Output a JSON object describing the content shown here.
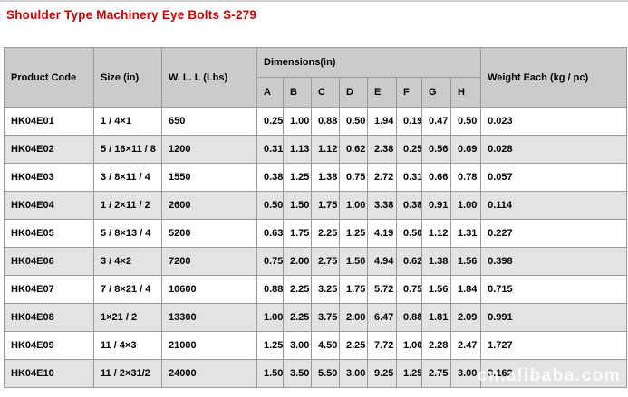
{
  "page_title": "Shoulder Type Machinery Eye Bolts S-279",
  "colors": {
    "title_red": "#cc0000",
    "header_bg": "#cbcbcb",
    "alt_row_bg": "#e3e3e3",
    "border": "#999999"
  },
  "table": {
    "headers": {
      "product_code": "Product Code",
      "size": "Size (in)",
      "wll": "W. L. L (Lbs)",
      "dimensions": "Dimensions(in)",
      "dim_letters": [
        "A",
        "B",
        "C",
        "D",
        "E",
        "F",
        "G",
        "H"
      ],
      "weight": "Weight Each (kg / pc)"
    },
    "rows": [
      {
        "code": "HK04E01",
        "size": "1 / 4×1",
        "wll": "650",
        "dims": [
          "0.25",
          "1.00",
          "0.88",
          "0.50",
          "1.94",
          "0.19",
          "0.47",
          "0.50"
        ],
        "weight": "0.023"
      },
      {
        "code": "HK04E02",
        "size": "5 / 16×11 / 8",
        "wll": "1200",
        "dims": [
          "0.31",
          "1.13",
          "1.12",
          "0.62",
          "2.38",
          "0.25",
          "0.56",
          "0.69"
        ],
        "weight": "0.028"
      },
      {
        "code": "HK04E03",
        "size": "3 / 8×11 / 4",
        "wll": "1550",
        "dims": [
          "0.38",
          "1.25",
          "1.38",
          "0.75",
          "2.72",
          "0.31",
          "0.66",
          "0.78"
        ],
        "weight": "0.057"
      },
      {
        "code": "HK04E04",
        "size": "1 / 2×11 / 2",
        "wll": "2600",
        "dims": [
          "0.50",
          "1.50",
          "1.75",
          "1.00",
          "3.38",
          "0.38",
          "0.91",
          "1.00"
        ],
        "weight": "0.114"
      },
      {
        "code": "HK04E05",
        "size": "5 / 8×13 / 4",
        "wll": "5200",
        "dims": [
          "0.63",
          "1.75",
          "2.25",
          "1.25",
          "4.19",
          "0.50",
          "1.12",
          "1.31"
        ],
        "weight": "0.227"
      },
      {
        "code": "HK04E06",
        "size": "3 / 4×2",
        "wll": "7200",
        "dims": [
          "0.75",
          "2.00",
          "2.75",
          "1.50",
          "4.94",
          "0.62",
          "1.38",
          "1.56"
        ],
        "weight": "0.398"
      },
      {
        "code": "HK04E07",
        "size": "7 / 8×21 / 4",
        "wll": "10600",
        "dims": [
          "0.88",
          "2.25",
          "3.25",
          "1.75",
          "5.72",
          "0.75",
          "1.56",
          "1.84"
        ],
        "weight": "0.715"
      },
      {
        "code": "HK04E08",
        "size": "1×21 / 2",
        "wll": "13300",
        "dims": [
          "1.00",
          "2.25",
          "3.75",
          "2.00",
          "6.47",
          "0.88",
          "1.81",
          "2.09"
        ],
        "weight": "0.991"
      },
      {
        "code": "HK04E09",
        "size": "11 / 4×3",
        "wll": "21000",
        "dims": [
          "1.25",
          "3.00",
          "4.50",
          "2.25",
          "7.72",
          "1.00",
          "2.28",
          "2.47"
        ],
        "weight": "1.727"
      },
      {
        "code": "HK04E10",
        "size": "11 / 2×31/2",
        "wll": "24000",
        "dims": [
          "1.50",
          "3.50",
          "5.50",
          "3.00",
          "9.25",
          "1.25",
          "2.75",
          "3.00"
        ],
        "weight": "3.162"
      }
    ]
  },
  "watermark": "cn.alibaba.com"
}
